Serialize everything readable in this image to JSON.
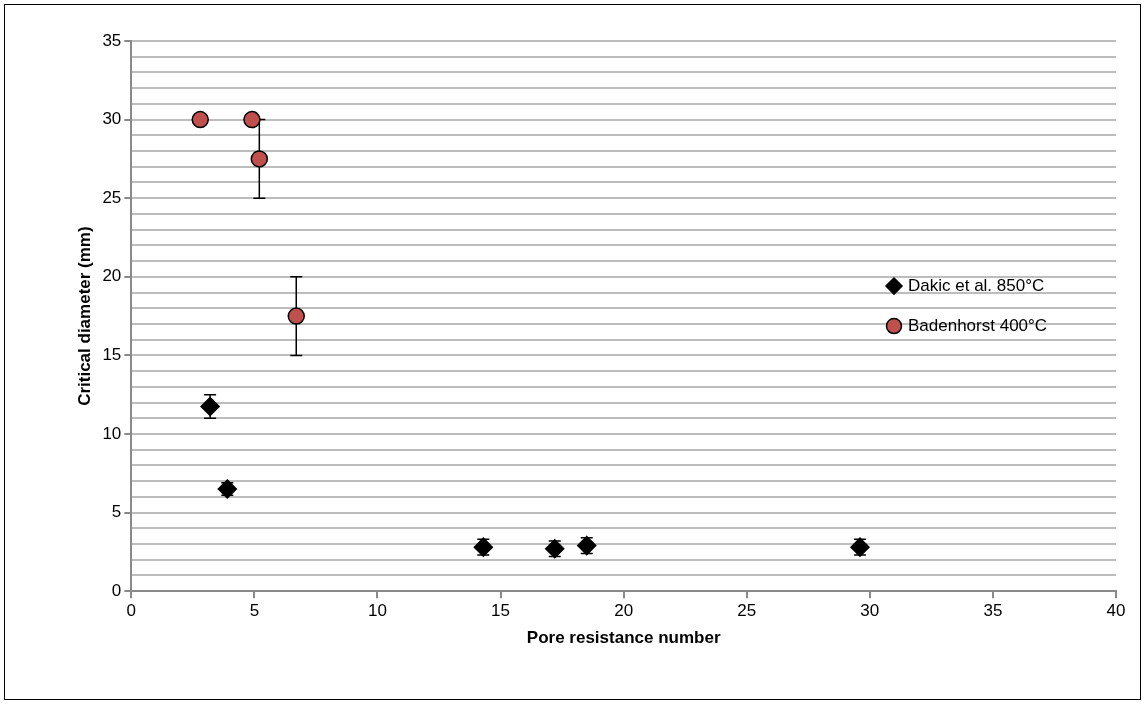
{
  "chart_data": {
    "type": "scatter",
    "xlabel": "Pore resistance number",
    "ylabel": "Critical diameter (mm)",
    "xlim": [
      0,
      40
    ],
    "xticks": [
      0,
      5,
      10,
      15,
      20,
      25,
      30,
      35,
      40
    ],
    "ylim": [
      0,
      35
    ],
    "yticks": [
      0,
      {
        "value": 1,
        "label": null
      },
      {
        "value": 2,
        "label": null
      },
      {
        "value": 3,
        "label": null
      },
      {
        "value": 4,
        "label": null
      },
      5,
      {
        "value": 6,
        "label": null
      },
      {
        "value": 7,
        "label": null
      },
      {
        "value": 8,
        "label": null
      },
      {
        "value": 9,
        "label": null
      },
      10,
      {
        "value": 11,
        "label": null
      },
      {
        "value": 12,
        "label": null
      },
      {
        "value": 13,
        "label": null
      },
      {
        "value": 14,
        "label": null
      },
      15,
      {
        "value": 16,
        "label": null
      },
      {
        "value": 17,
        "label": null
      },
      {
        "value": 18,
        "label": null
      },
      {
        "value": 19,
        "label": null
      },
      20,
      {
        "value": 21,
        "label": null
      },
      {
        "value": 22,
        "label": null
      },
      {
        "value": 23,
        "label": null
      },
      {
        "value": 24,
        "label": null
      },
      25,
      {
        "value": 26,
        "label": null
      },
      {
        "value": 27,
        "label": null
      },
      {
        "value": 28,
        "label": null
      },
      {
        "value": 29,
        "label": null
      },
      30,
      {
        "value": 31,
        "label": null
      },
      {
        "value": 32,
        "label": null
      },
      {
        "value": 33,
        "label": null
      },
      {
        "value": 34,
        "label": null
      },
      35
    ],
    "grid": "y",
    "legend": "right",
    "series": [
      {
        "name": "Dakic et al. 850°C",
        "color": "#000000",
        "marker": "diamond",
        "x": [
          3.2,
          3.9,
          14.3,
          17.2,
          18.5,
          29.6
        ],
        "values": [
          11.75,
          6.5,
          2.8,
          2.7,
          2.9,
          2.8
        ],
        "errors": [
          0.75,
          0.4,
          0.5,
          0.5,
          0.5,
          0.5
        ]
      },
      {
        "name": "Badenhorst 400°C",
        "color": "#c0504d",
        "marker": "circle",
        "x": [
          2.8,
          4.9,
          5.2,
          6.7
        ],
        "values": [
          30,
          30,
          27.5,
          17.5
        ],
        "errors": [
          null,
          null,
          2.5,
          2.5
        ]
      }
    ]
  }
}
